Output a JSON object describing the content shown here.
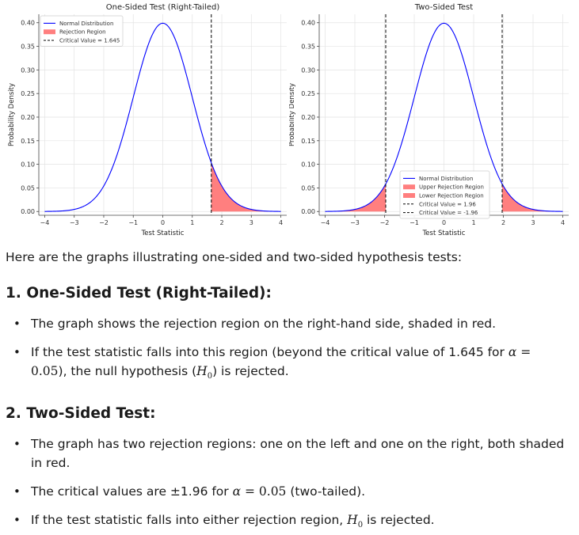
{
  "chart_data": [
    {
      "type": "line",
      "title": "One-Sided Test (Right-Tailed)",
      "xlabel": "Test Statistic",
      "ylabel": "Probability Density",
      "xlim": [
        -4.2,
        4.2
      ],
      "ylim": [
        -0.008,
        0.418
      ],
      "xticks": [
        -4,
        -3,
        -2,
        -1,
        0,
        1,
        2,
        3,
        4
      ],
      "xtick_labels": [
        "−4",
        "−3",
        "−2",
        "−1",
        "0",
        "1",
        "2",
        "3",
        "4"
      ],
      "yticks": [
        0.0,
        0.05,
        0.1,
        0.15,
        0.2,
        0.25,
        0.3,
        0.35,
        0.4
      ],
      "ytick_labels": [
        "0.00",
        "0.05",
        "0.10",
        "0.15",
        "0.20",
        "0.25",
        "0.30",
        "0.35",
        "0.40"
      ],
      "grid": true,
      "legend_position": "top-left",
      "series": [
        {
          "name": "Normal Distribution",
          "kind": "curve",
          "distribution": "standard normal",
          "x_range": [
            -4,
            4
          ],
          "color": "#0000ff"
        },
        {
          "name": "Rejection Region",
          "kind": "shaded",
          "x_range": [
            1.645,
            4
          ],
          "color": "#ff7f7f"
        },
        {
          "name": "Critical Value = 1.645",
          "kind": "vline",
          "x": 1.645,
          "color": "#000000"
        }
      ]
    },
    {
      "type": "line",
      "title": "Two-Sided Test",
      "xlabel": "Test Statistic",
      "ylabel": "Probability Density",
      "xlim": [
        -4.2,
        4.2
      ],
      "ylim": [
        -0.008,
        0.418
      ],
      "xticks": [
        -4,
        -3,
        -2,
        -1,
        0,
        1,
        2,
        3,
        4
      ],
      "xtick_labels": [
        "−4",
        "−3",
        "−2",
        "−1",
        "0",
        "1",
        "2",
        "3",
        "4"
      ],
      "yticks": [
        0.0,
        0.05,
        0.1,
        0.15,
        0.2,
        0.25,
        0.3,
        0.35,
        0.4
      ],
      "ytick_labels": [
        "0.00",
        "0.05",
        "0.10",
        "0.15",
        "0.20",
        "0.25",
        "0.30",
        "0.35",
        "0.40"
      ],
      "grid": true,
      "legend_position": "lower-center",
      "series": [
        {
          "name": "Normal Distribution",
          "kind": "curve",
          "distribution": "standard normal",
          "x_range": [
            -4,
            4
          ],
          "color": "#0000ff"
        },
        {
          "name": "Upper Rejection Region",
          "kind": "shaded",
          "x_range": [
            1.96,
            4
          ],
          "color": "#ff7f7f"
        },
        {
          "name": "Lower Rejection Region",
          "kind": "shaded",
          "x_range": [
            -4,
            -1.96
          ],
          "color": "#ff7f7f"
        },
        {
          "name": "Critical Value = 1.96",
          "kind": "vline",
          "x": 1.96,
          "color": "#000000"
        },
        {
          "name": "Critical Value = -1.96",
          "kind": "vline",
          "x": -1.96,
          "color": "#000000"
        }
      ]
    }
  ],
  "text": {
    "intro": "Here are the graphs illustrating one-sided and two-sided hypothesis tests:",
    "section1": {
      "heading": "1. One-Sided Test (Right-Tailed):",
      "b1": "The graph shows the rejection region on the right-hand side, shaded in red.",
      "b2_a": "If the test statistic falls into this region (beyond the critical value of 1.645 for ",
      "b2_b": "), the null hypothesis (",
      "b2_c": ") is rejected."
    },
    "section2": {
      "heading": "2. Two-Sided Test:",
      "b1": "The graph has two rejection regions: one on the left and one on the right, both shaded in red.",
      "b2_a": "The critical values are ±1.96 for ",
      "b2_b": " (two-tailed).",
      "b3_a": "If the test statistic falls into either rejection region, ",
      "b3_b": " is rejected."
    },
    "math": {
      "alpha": "α",
      "eq": " = ",
      "alpha_value": "0.05",
      "H": "H",
      "H_sub": "0",
      "paren_open": "(",
      "paren_close": ")"
    }
  }
}
